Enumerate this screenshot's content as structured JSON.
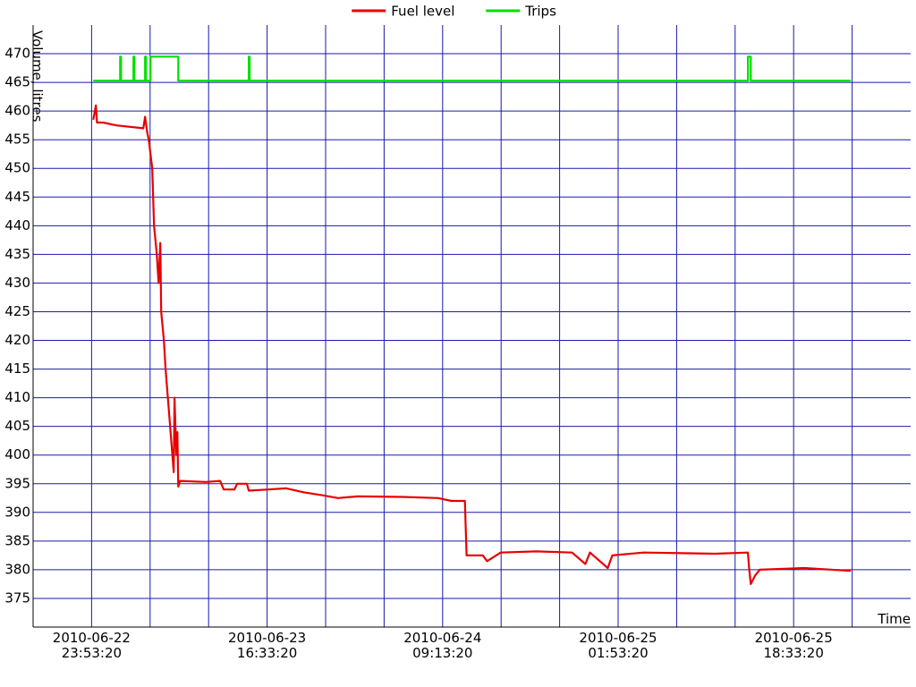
{
  "chart_data": {
    "type": "line",
    "y_label": "Volume, litres",
    "x_label": "Time",
    "xlim": [
      "2010-06-22 18:20:00",
      "2010-06-26 05:40:00"
    ],
    "ylim": [
      370,
      475
    ],
    "yticks": [
      375,
      380,
      385,
      390,
      395,
      400,
      405,
      410,
      415,
      420,
      425,
      430,
      435,
      440,
      445,
      450,
      455,
      460,
      465,
      470
    ],
    "xticks": [
      {
        "value": "2010-06-22 23:53:20",
        "label": "2010-06-22 23:53:20"
      },
      {
        "value": "2010-06-23 05:26:40",
        "label": null
      },
      {
        "value": "2010-06-23 11:00:00",
        "label": null
      },
      {
        "value": "2010-06-23 16:33:20",
        "label": "2010-06-23 16:33:20"
      },
      {
        "value": "2010-06-23 22:06:40",
        "label": null
      },
      {
        "value": "2010-06-24 03:40:00",
        "label": null
      },
      {
        "value": "2010-06-24 09:13:20",
        "label": "2010-06-24 09:13:20"
      },
      {
        "value": "2010-06-24 14:46:40",
        "label": null
      },
      {
        "value": "2010-06-24 20:20:00",
        "label": null
      },
      {
        "value": "2010-06-25 01:53:20",
        "label": "2010-06-25 01:53:20"
      },
      {
        "value": "2010-06-25 07:26:40",
        "label": null
      },
      {
        "value": "2010-06-25 13:00:00",
        "label": null
      },
      {
        "value": "2010-06-25 18:33:20",
        "label": "2010-06-25 18:33:20"
      },
      {
        "value": "2010-06-26 00:06:40",
        "label": null
      }
    ],
    "grid": true,
    "grid_color": "#1a1aaa",
    "legend": "top",
    "series": [
      {
        "name": "Fuel level",
        "color": "#e80000",
        "x": [
          "2010-06-23 00:03:00",
          "2010-06-23 00:18:00",
          "2010-06-23 00:24:00",
          "2010-06-23 00:59:00",
          "2010-06-23 02:15:00",
          "2010-06-23 04:48:00",
          "2010-06-23 04:58:00",
          "2010-06-23 05:09:00",
          "2010-06-23 05:19:00",
          "2010-06-23 05:39:00",
          "2010-06-23 05:49:00",
          "2010-06-23 06:05:00",
          "2010-06-23 06:15:00",
          "2010-06-23 06:25:00",
          "2010-06-23 06:30:00",
          "2010-06-23 06:45:00",
          "2010-06-23 06:55:00",
          "2010-06-23 07:21:00",
          "2010-06-23 07:41:00",
          "2010-06-23 07:46:00",
          "2010-06-23 07:56:00",
          "2010-06-23 08:02:00",
          "2010-06-23 08:07:00",
          "2010-06-23 08:17:00",
          "2010-06-23 10:44:00",
          "2010-06-23 12:06:00",
          "2010-06-23 12:26:00",
          "2010-06-23 13:27:00",
          "2010-06-23 13:43:00",
          "2010-06-23 14:38:00",
          "2010-06-23 14:49:00",
          "2010-06-23 16:41:00",
          "2010-06-23 18:22:00",
          "2010-06-23 20:04:00",
          "2010-06-23 21:46:00",
          "2010-06-23 23:18:00",
          "2010-06-24 01:10:00",
          "2010-06-24 05:24:00",
          "2010-06-24 08:48:00",
          "2010-06-24 10:04:00",
          "2010-06-24 11:20:00",
          "2010-06-24 11:30:00",
          "2010-06-24 13:02:00",
          "2010-06-24 13:27:00",
          "2010-06-24 14:44:00",
          "2010-06-24 18:07:00",
          "2010-06-24 21:31:00",
          "2010-06-24 22:47:00",
          "2010-06-24 23:13:00",
          "2010-06-25 00:54:00",
          "2010-06-25 01:20:00",
          "2010-06-25 04:18:00",
          "2010-06-25 11:05:00",
          "2010-06-25 14:13:00",
          "2010-06-25 14:19:00",
          "2010-06-25 14:29:00",
          "2010-06-25 14:54:00",
          "2010-06-25 15:20:00",
          "2010-06-25 19:34:00",
          "2010-06-25 23:59:00"
        ],
        "values": [
          458.5,
          461,
          458,
          458,
          457.5,
          457,
          459,
          456.5,
          455,
          450,
          440,
          435,
          430,
          437,
          425,
          420,
          415,
          405,
          397,
          410,
          400,
          404,
          394.5,
          395.5,
          395.3,
          395.5,
          394,
          394,
          395,
          395,
          393.8,
          394,
          394.2,
          393.5,
          393,
          392.5,
          392.8,
          392.7,
          392.5,
          392,
          392,
          382.5,
          382.5,
          381.5,
          383,
          383.2,
          383,
          381,
          383,
          380.3,
          382.5,
          383,
          382.8,
          383,
          380.5,
          377.5,
          379,
          380,
          380.3,
          379.8
        ]
      },
      {
        "name": "Trips",
        "color": "#00e000",
        "x": [
          "2010-06-23 00:03:00",
          "2010-06-23 02:36:00",
          "2010-06-23 02:36:00",
          "2010-06-23 02:41:00",
          "2010-06-23 02:41:00",
          "2010-06-23 03:52:00",
          "2010-06-23 03:52:00",
          "2010-06-23 03:57:00",
          "2010-06-23 03:57:00",
          "2010-06-23 04:58:00",
          "2010-06-23 04:58:00",
          "2010-06-23 05:03:00",
          "2010-06-23 05:03:00",
          "2010-06-23 05:29:00",
          "2010-06-23 05:29:00",
          "2010-06-23 08:07:00",
          "2010-06-23 08:07:00",
          "2010-06-23 14:49:00",
          "2010-06-23 14:49:00",
          "2010-06-23 14:54:00",
          "2010-06-23 14:54:00",
          "2010-06-25 14:13:00",
          "2010-06-25 14:13:00",
          "2010-06-25 14:29:00",
          "2010-06-25 14:29:00",
          "2010-06-25 23:59:00"
        ],
        "values": [
          465.3,
          465.3,
          469.5,
          469.5,
          465.3,
          465.3,
          469.5,
          469.5,
          465.3,
          465.3,
          469.5,
          469.5,
          465.3,
          465.3,
          469.5,
          469.5,
          465.3,
          465.3,
          469.5,
          469.5,
          465.3,
          465.3,
          469.5,
          469.5,
          465.3,
          465.3
        ]
      }
    ]
  }
}
